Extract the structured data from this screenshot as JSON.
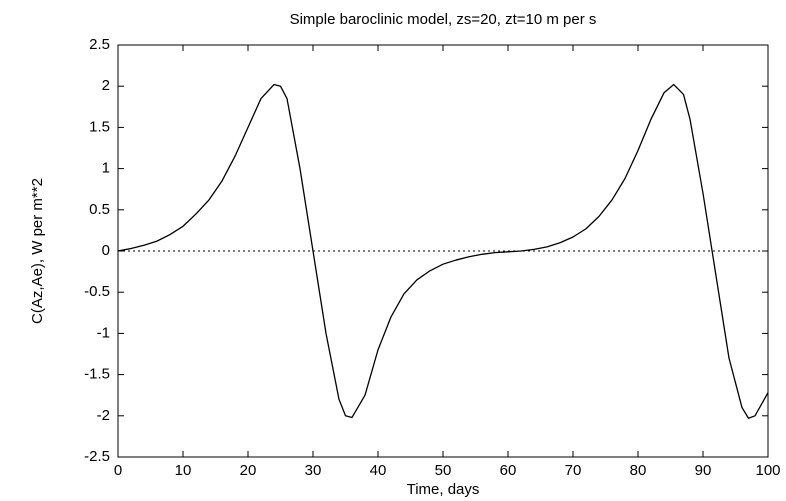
{
  "chart_data": {
    "type": "line",
    "title": "Simple baroclinic model, zs=20, zt=10 m per s",
    "x_label": "Time, days",
    "y_label": "C(Az,Ae), W per m**2",
    "x": [
      0,
      2,
      4,
      6,
      8,
      10,
      12,
      14,
      16,
      18,
      20,
      22,
      24,
      25,
      26,
      28,
      30,
      32,
      34,
      35,
      36,
      38,
      40,
      42,
      44,
      46,
      48,
      50,
      52,
      54,
      56,
      58,
      60,
      62,
      64,
      66,
      68,
      70,
      72,
      74,
      76,
      78,
      80,
      82,
      84,
      85.5,
      87,
      88,
      90,
      92,
      94,
      96,
      97,
      98,
      100
    ],
    "series": [
      {
        "color": "#000000",
        "values": [
          0,
          0.03,
          0.07,
          0.12,
          0.2,
          0.3,
          0.45,
          0.62,
          0.85,
          1.15,
          1.5,
          1.85,
          2.02,
          2.0,
          1.85,
          1.0,
          0.0,
          -1.0,
          -1.8,
          -2.0,
          -2.02,
          -1.75,
          -1.2,
          -0.8,
          -0.52,
          -0.35,
          -0.24,
          -0.16,
          -0.11,
          -0.07,
          -0.04,
          -0.02,
          -0.01,
          0.0,
          0.02,
          0.05,
          0.1,
          0.17,
          0.27,
          0.42,
          0.62,
          0.88,
          1.22,
          1.6,
          1.92,
          2.02,
          1.9,
          1.6,
          0.7,
          -0.3,
          -1.3,
          -1.9,
          -2.03,
          -2.0,
          -1.72
        ]
      }
    ],
    "xlim": [
      0,
      100
    ],
    "xticks": [
      0,
      10,
      20,
      30,
      40,
      50,
      60,
      70,
      80,
      90,
      100
    ],
    "ylim": [
      -2.5,
      2.5
    ],
    "yticks": [
      -2.5,
      -2,
      -1.5,
      -1,
      -0.5,
      0,
      0.5,
      1,
      1.5,
      2,
      2.5
    ],
    "zero_line": "dotted"
  }
}
